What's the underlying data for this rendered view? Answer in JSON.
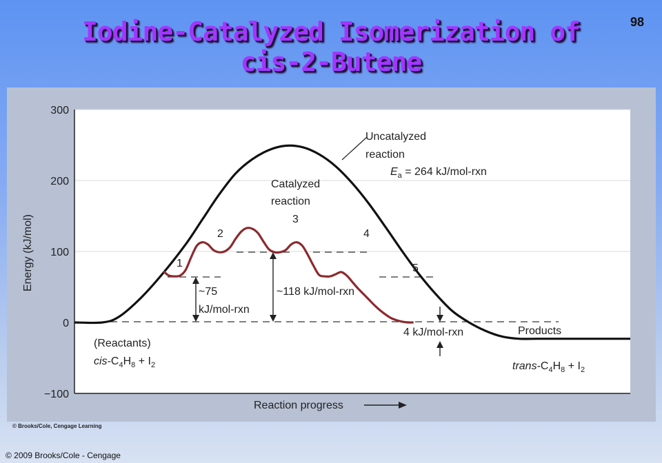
{
  "slide": {
    "number": "98",
    "title_line1": "Iodine-Catalyzed Isomerization of",
    "title_line2": "cis-2-Butene",
    "credit": "© Brooks/Cole, Cengage Learning",
    "footer": "© 2009 Brooks/Cole - Cengage"
  },
  "chart_data": {
    "type": "line",
    "ylabel": "Energy (kJ/mol)",
    "xlabel": "Reaction progress",
    "ylim": [
      -100,
      300
    ],
    "yticks": [
      "300",
      "200",
      "100",
      "0",
      "−100"
    ],
    "grid": true,
    "series": [
      {
        "name": "Uncatalyzed reaction",
        "color": "#111111",
        "x": [
          0,
          5,
          8,
          12,
          16,
          20,
          23,
          26,
          29,
          32,
          35,
          38,
          41,
          44,
          47,
          50,
          53,
          56,
          59,
          62,
          65,
          68,
          71,
          74,
          77,
          80,
          83,
          86,
          100
        ],
        "y": [
          0,
          0,
          8,
          35,
          70,
          110,
          145,
          180,
          210,
          230,
          243,
          249,
          247,
          237,
          220,
          196,
          167,
          134,
          100,
          68,
          40,
          16,
          0,
          -12,
          -20,
          -23,
          -23,
          -23,
          -23
        ]
      },
      {
        "name": "Catalyzed reaction",
        "color": "#8b2a2e",
        "x": [
          16,
          17,
          18,
          19,
          20,
          21,
          22,
          23,
          24,
          25,
          26,
          27,
          28,
          29,
          30,
          31,
          32,
          33,
          34,
          35,
          36,
          37,
          38,
          39,
          40,
          41,
          42,
          43,
          44,
          45,
          46,
          47,
          48,
          49,
          50,
          51,
          52,
          53,
          54,
          55,
          56,
          57,
          58,
          59,
          60,
          61
        ],
        "y": [
          72,
          66,
          65,
          66,
          74,
          92,
          108,
          113,
          110,
          102,
          99,
          100,
          106,
          118,
          128,
          133,
          132,
          126,
          114,
          103,
          99,
          99,
          102,
          110,
          113,
          108,
          95,
          80,
          67,
          65,
          65,
          68,
          71,
          66,
          57,
          48,
          40,
          32,
          24,
          17,
          11,
          6,
          3,
          1,
          0,
          0
        ]
      }
    ],
    "annotations": {
      "uncatalyzed_1": "Uncatalyzed",
      "uncatalyzed_2": "reaction",
      "ea": "E",
      "ea_sub": "a",
      "ea_value": " = 264 kJ/mol-rxn",
      "catalyzed_1": "Catalyzed",
      "catalyzed_2": "reaction",
      "peaks": [
        "1",
        "2",
        "3",
        "4",
        "5"
      ],
      "gap_75_1": "~75",
      "gap_75_2": "kJ/mol-rxn",
      "gap_118": "~118 kJ/mol-rxn",
      "gap_4": "4 kJ/mol-rxn",
      "reactants_label": "(Reactants)",
      "reactants_formula": "cis-C4H8 + I2",
      "products_label": "Products",
      "products_formula": "trans-C4H8 + I2"
    },
    "levels": [
      {
        "name": "Ea_uncatalyzed_kJ",
        "value": 264
      },
      {
        "name": "catalyzed_step1_kJ",
        "value": 75
      },
      {
        "name": "catalyzed_max_kJ",
        "value": 118
      },
      {
        "name": "product_diff_kJ",
        "value": 4
      }
    ]
  }
}
